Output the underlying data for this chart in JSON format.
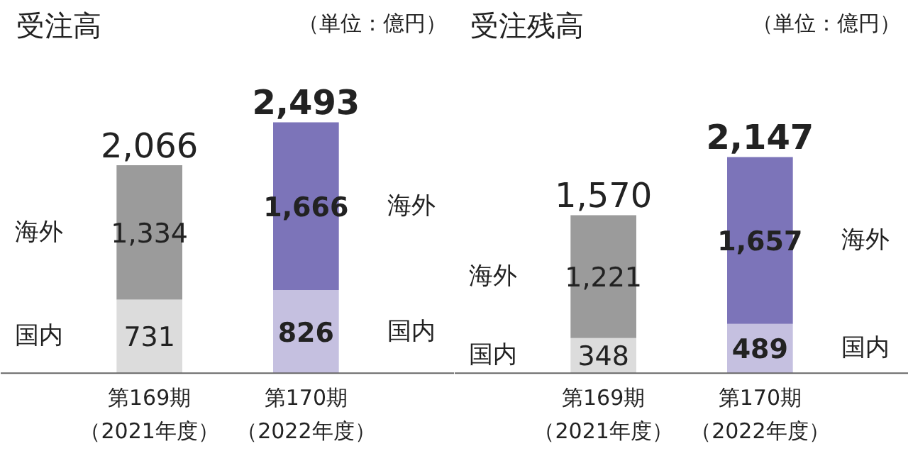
{
  "chart_data": [
    {
      "type": "bar",
      "stacked": true,
      "title": "受注高",
      "subtitle": "（単位：億円）",
      "categories": [
        "第169期（2021年度）",
        "第170期（2022年度）"
      ],
      "series": [
        {
          "name": "国内",
          "colors": [
            "#dcdcdc",
            "#c5c0e0"
          ],
          "values": [
            731,
            826
          ],
          "value_labels": [
            "731",
            "826"
          ]
        },
        {
          "name": "海外",
          "colors": [
            "#9b9b9b",
            "#7c74b9"
          ],
          "values": [
            1334,
            1666
          ],
          "value_labels": [
            "1,334",
            "1,666"
          ]
        }
      ],
      "totals": [
        "2,066",
        "2,493"
      ]
    },
    {
      "type": "bar",
      "stacked": true,
      "title": "受注残高",
      "subtitle": "（単位：億円）",
      "categories": [
        "第169期（2021年度）",
        "第170期（2022年度）"
      ],
      "series": [
        {
          "name": "国内",
          "colors": [
            "#dcdcdc",
            "#c5c0e0"
          ],
          "values": [
            348,
            489
          ],
          "value_labels": [
            "348",
            "489"
          ]
        },
        {
          "name": "海外",
          "colors": [
            "#9b9b9b",
            "#7c74b9"
          ],
          "values": [
            1221,
            1657
          ],
          "value_labels": [
            "1,221",
            "1,657"
          ]
        }
      ],
      "totals": [
        "1,570",
        "2,147"
      ]
    }
  ]
}
